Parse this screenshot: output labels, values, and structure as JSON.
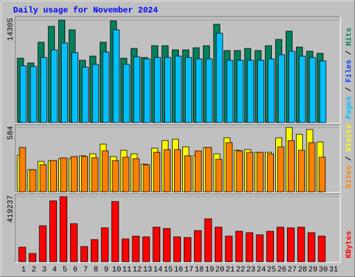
{
  "chart_data": [
    {
      "type": "bar",
      "title": "Daily usage for November 2024",
      "ylim": [
        0,
        14305
      ],
      "yticks": [
        14305
      ],
      "legend_separator": " / ",
      "series": [
        {
          "name": "Pages",
          "color": "#00c0ff",
          "values": [
            7925,
            7829,
            9085,
            10148,
            11115,
            9762,
            7732,
            8119,
            9858,
            12951,
            8119,
            9182,
            8892,
            9085,
            9085,
            9278,
            9085,
            8892,
            8892,
            12468,
            8699,
            8699,
            8699,
            8699,
            8892,
            9472,
            9955,
            9278,
            9085,
            8602,
            null
          ]
        },
        {
          "name": "Files",
          "color": "#0040ff",
          "values": [
            1836,
            1643,
            3769,
            5026,
            6669,
            5026,
            2416,
            2803,
            3769,
            7635,
            2803,
            3576,
            2803,
            3093,
            3093,
            3093,
            2996,
            2900,
            2900,
            5026,
            2803,
            2610,
            2803,
            2610,
            2996,
            2803,
            3576,
            3093,
            2803,
            2610,
            null
          ]
        },
        {
          "name": "Hits",
          "color": "#00805c",
          "values": [
            8988,
            8312,
            11211,
            13434,
            14305,
            12951,
            8699,
            9278,
            11211,
            14208,
            8988,
            10342,
            9085,
            10728,
            10728,
            10148,
            10148,
            10438,
            10728,
            13724,
            10052,
            10052,
            10342,
            10052,
            10728,
            11598,
            12758,
            10535,
            9955,
            9665,
            null
          ]
        }
      ]
    },
    {
      "type": "bar",
      "ylim": [
        0,
        584
      ],
      "yticks": [
        584
      ],
      "legend_separator": " / ",
      "series": [
        {
          "name": "Sites",
          "color": "#ff8000",
          "values": [
            402,
            201,
            245,
            283,
            308,
            320,
            320,
            308,
            371,
            283,
            314,
            301,
            245,
            358,
            383,
            383,
            327,
            371,
            402,
            295,
            446,
            371,
            358,
            358,
            345,
            408,
            465,
            377,
            446,
            314,
            null
          ]
        },
        {
          "name": "Visits",
          "color": "#ffff00",
          "values": [
            333,
            201,
            276,
            283,
            301,
            301,
            327,
            345,
            433,
            320,
            377,
            345,
            251,
            396,
            465,
            477,
            408,
            327,
            402,
            345,
            490,
            377,
            383,
            358,
            358,
            490,
            584,
            521,
            565,
            452,
            null
          ]
        }
      ]
    },
    {
      "type": "bar",
      "ylim": [
        0,
        419237
      ],
      "yticks": [
        419237
      ],
      "series": [
        {
          "name": "KBytes",
          "color": "#ff0000",
          "values": [
            93660,
            53520,
            231920,
            392480,
            419237,
            245300,
            98120,
            142720,
            218540,
            388020,
            147180,
            165020,
            160560,
            223000,
            214080,
            160560,
            156100,
            200700,
            276520,
            223000,
            165020,
            196240,
            187320,
            173940,
            196240,
            223000,
            218540,
            223000,
            187320,
            165020,
            null
          ]
        }
      ],
      "categories": [
        "1",
        "2",
        "3",
        "4",
        "5",
        "6",
        "7",
        "8",
        "9",
        "10",
        "11",
        "12",
        "13",
        "14",
        "15",
        "16",
        "17",
        "18",
        "19",
        "20",
        "21",
        "22",
        "23",
        "24",
        "25",
        "26",
        "27",
        "28",
        "29",
        "30",
        "31"
      ],
      "category_colors": [
        "#000000",
        "#00805c",
        "#00805c",
        "#000000",
        "#000000",
        "#000000",
        "#000000",
        "#000000",
        "#00805c",
        "#00805c",
        "#000000",
        "#000000",
        "#000000",
        "#000000",
        "#000000",
        "#00805c",
        "#00805c",
        "#000000",
        "#000000",
        "#000000",
        "#000000",
        "#000000",
        "#00805c",
        "#00805c",
        "#000000",
        "#000000",
        "#000000",
        "#000000",
        "#000000",
        "#00805c",
        "#00805c"
      ]
    }
  ]
}
